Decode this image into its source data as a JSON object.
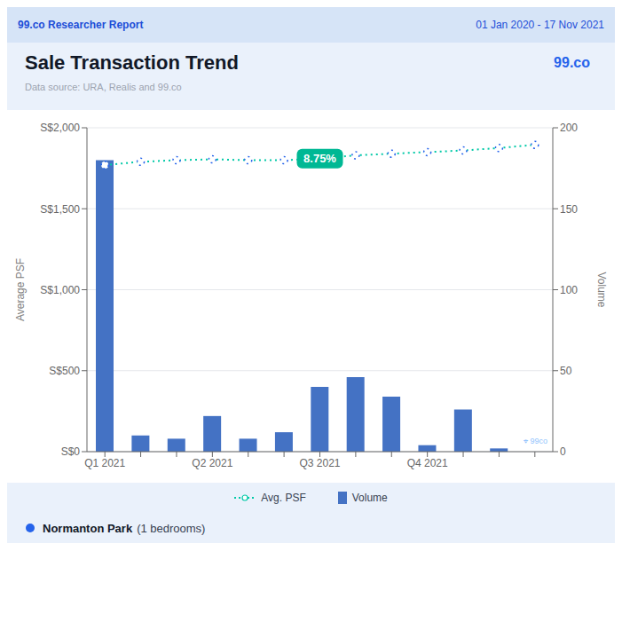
{
  "chart_data": {
    "type": "combo",
    "title": "Sale Transaction Trend",
    "subtitle": "Data source: URA, Realis and 99.co",
    "header": [
      "99.co Researcher Report",
      "01 Jan 2020 - 17 Nov 2021"
    ],
    "logo": "99.co",
    "watermark": "⌖ 99co",
    "property": "Normanton Park",
    "property_suffix": "(1 bedrooms)",
    "categories": [
      "Q1 2021",
      null,
      null,
      "Q2 2021",
      null,
      null,
      "Q3 2021",
      null,
      null,
      "Q4 2021",
      null,
      null,
      null
    ],
    "series": [
      {
        "name": "Avg. PSF",
        "type": "line",
        "color": "#00c9a7",
        "line_style": "dotted",
        "marker": "circle",
        "values": [
          1770,
          1790,
          1800,
          1805,
          1800,
          1800,
          1810,
          1830,
          1840,
          1850,
          1860,
          1875,
          1895
        ]
      },
      {
        "name": "Volume",
        "type": "bar",
        "axis": "y2",
        "color": "#4472c4",
        "values": [
          180,
          10,
          8,
          22,
          8,
          12,
          40,
          46,
          34,
          4,
          26,
          2,
          0
        ]
      }
    ],
    "ylabel": "Average PSF",
    "y2label": "Volume",
    "ylim": [
      0,
      2000
    ],
    "yticks": [
      {
        "value": 0,
        "label": "S$0"
      },
      {
        "value": 500,
        "label": "S$500"
      },
      {
        "value": 1000,
        "label": "S$1,000"
      },
      {
        "value": 1500,
        "label": "S$1,500"
      },
      {
        "value": 2000,
        "label": "S$2,000"
      }
    ],
    "y2lim": [
      0,
      200
    ],
    "y2ticks": [
      0,
      50,
      100,
      150,
      200
    ],
    "grid": true,
    "annotations": [
      {
        "text": "8.75%",
        "x": 6,
        "y": 1810,
        "color": "#00b894"
      }
    ]
  }
}
